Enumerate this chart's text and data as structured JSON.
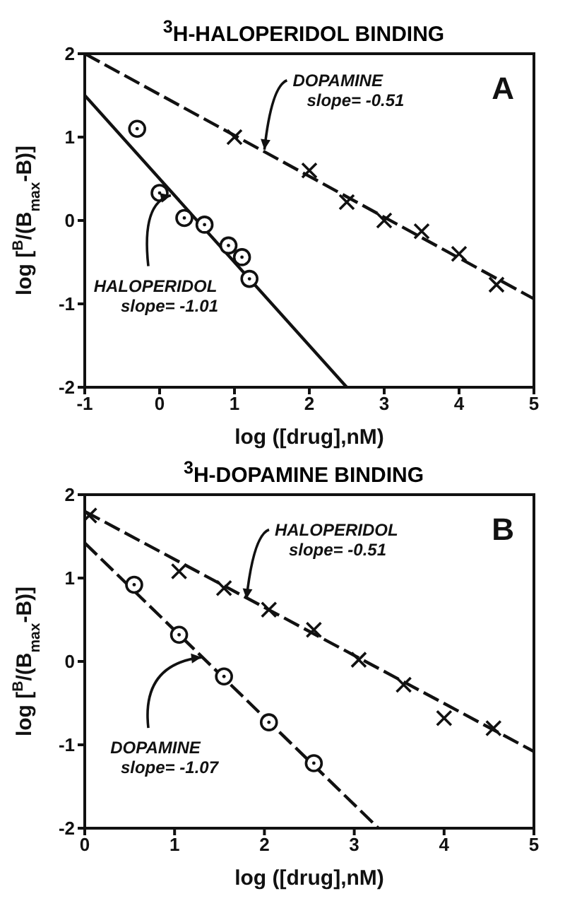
{
  "chart_data": [
    {
      "type": "scatter",
      "title": "$^{3}$H-HALOPERIDOL BINDING",
      "xlabel": "log ([drug],nM)",
      "ylabel": "log [$^{B}$/(B$_{max}$-B)]",
      "xlim": [
        -1,
        5
      ],
      "xticks": [
        -1,
        0,
        1,
        2,
        3,
        4,
        5
      ],
      "ylim": [
        -2,
        2
      ],
      "yticks": [
        -2,
        -1,
        0,
        1,
        2
      ],
      "grid": false,
      "legend": false,
      "series": [
        {
          "type": "scatter",
          "marker": "cross",
          "color": "#111111",
          "x": [
            1,
            2,
            2.5,
            3,
            3.5,
            4,
            4.5
          ],
          "values": [
            1,
            0.6,
            0.22,
            0,
            -0.13,
            -0.4,
            -0.77
          ]
        },
        {
          "type": "line",
          "marker": "none",
          "line_style": "dashed",
          "color": "#111111",
          "x": [
            -1,
            5
          ],
          "values": [
            2,
            -0.94
          ]
        },
        {
          "type": "scatter",
          "marker": "circle",
          "color": "#111111",
          "x": [
            -0.3,
            0,
            0.33,
            0.6,
            0.92,
            1.1,
            1.2
          ],
          "values": [
            1.1,
            0.33,
            0.03,
            -0.05,
            -0.3,
            -0.44,
            -0.7
          ]
        },
        {
          "type": "line",
          "marker": "none",
          "line_style": "solid",
          "color": "#111111",
          "x": [
            -1,
            2.5
          ],
          "values": [
            1.5,
            -2
          ]
        }
      ],
      "annotations": [
        {
          "text": "DOPAMINE\nslope= -0.51",
          "x": 1.4,
          "y": 0.85
        },
        {
          "text": "HALOPERIDOL\nslope= -1.01",
          "x": 0.15,
          "y": 0.3
        },
        "A"
      ]
    },
    {
      "type": "scatter",
      "title": "$^{3}$H-DOPAMINE BINDING",
      "xlabel": "log ([drug],nM)",
      "ylabel": "log [$^{B}$/(B$_{max}$-B)]",
      "xlim": [
        0,
        5
      ],
      "xticks": [
        0,
        1,
        2,
        3,
        4,
        5
      ],
      "ylim": [
        -2,
        2
      ],
      "yticks": [
        -2,
        -1,
        0,
        1,
        2
      ],
      "grid": false,
      "legend": false,
      "series": [
        {
          "type": "scatter",
          "marker": "cross",
          "color": "#111111",
          "x": [
            0.05,
            1.05,
            1.55,
            2.05,
            2.55,
            3.05,
            3.55,
            4,
            4.55
          ],
          "values": [
            1.75,
            1.08,
            0.88,
            0.62,
            0.38,
            0.02,
            -0.28,
            -0.68,
            -0.8
          ]
        },
        {
          "type": "line",
          "marker": "none",
          "line_style": "dashed",
          "color": "#111111",
          "x": [
            0,
            5
          ],
          "values": [
            1.8,
            -1.08
          ]
        },
        {
          "type": "scatter",
          "marker": "circle",
          "color": "#111111",
          "x": [
            0.55,
            1.05,
            1.55,
            2.05,
            2.55
          ],
          "values": [
            0.92,
            0.32,
            -0.18,
            -0.73,
            -1.22
          ]
        },
        {
          "type": "line",
          "marker": "none",
          "line_style": "dashed",
          "color": "#111111",
          "x": [
            0,
            3.27
          ],
          "values": [
            1.42,
            -2
          ]
        }
      ],
      "annotations": [
        {
          "text": "HALOPERIDOL\nslope= -0.51",
          "x": 1.8,
          "y": 0.75
        },
        {
          "text": "DOPAMINE\nslope= -1.07",
          "x": 1.3,
          "y": 0.05
        },
        "B"
      ]
    }
  ]
}
